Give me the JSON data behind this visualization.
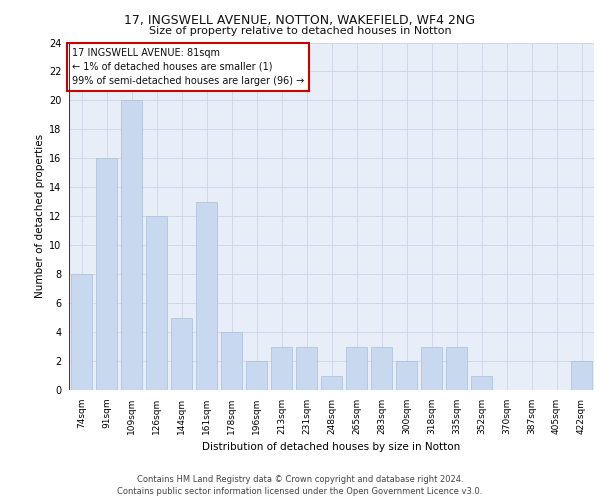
{
  "title1": "17, INGSWELL AVENUE, NOTTON, WAKEFIELD, WF4 2NG",
  "title2": "Size of property relative to detached houses in Notton",
  "xlabel": "Distribution of detached houses by size in Notton",
  "ylabel": "Number of detached properties",
  "categories": [
    "74sqm",
    "91sqm",
    "109sqm",
    "126sqm",
    "144sqm",
    "161sqm",
    "178sqm",
    "196sqm",
    "213sqm",
    "231sqm",
    "248sqm",
    "265sqm",
    "283sqm",
    "300sqm",
    "318sqm",
    "335sqm",
    "352sqm",
    "370sqm",
    "387sqm",
    "405sqm",
    "422sqm"
  ],
  "values": [
    8,
    16,
    20,
    12,
    5,
    13,
    4,
    2,
    3,
    3,
    1,
    3,
    3,
    2,
    3,
    3,
    1,
    0,
    0,
    0,
    2
  ],
  "bar_color": "#c8d8ee",
  "bar_edge_color": "#aabedd",
  "ylim": [
    0,
    24
  ],
  "yticks": [
    0,
    2,
    4,
    6,
    8,
    10,
    12,
    14,
    16,
    18,
    20,
    22,
    24
  ],
  "annotation_text": "17 INGSWELL AVENUE: 81sqm\n← 1% of detached houses are smaller (1)\n99% of semi-detached houses are larger (96) →",
  "annotation_box_color": "#ffffff",
  "annotation_box_edge": "#cc0000",
  "vline_color": "#cc0000",
  "footer": "Contains HM Land Registry data © Crown copyright and database right 2024.\nContains public sector information licensed under the Open Government Licence v3.0.",
  "grid_color": "#d0d8e8",
  "bg_color": "#e8eef8"
}
